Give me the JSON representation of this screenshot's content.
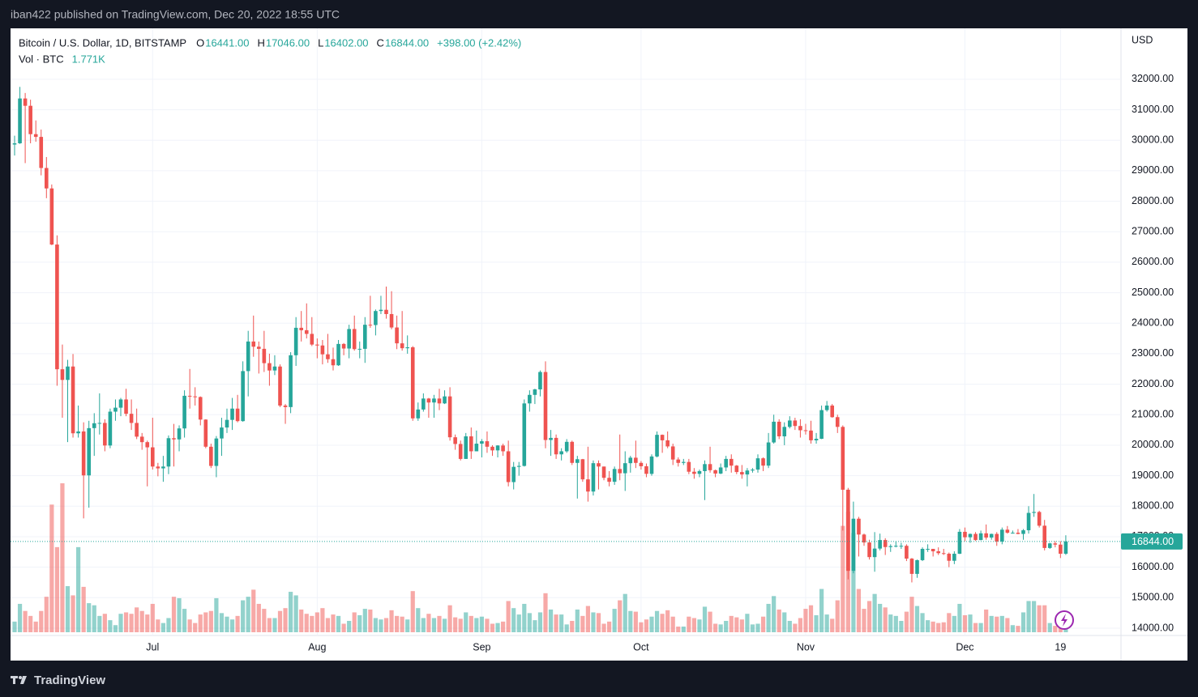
{
  "header": {
    "text": "iban422 published on TradingView.com, Dec 20, 2022 18:55 UTC"
  },
  "chart_data": {
    "type": "candlestick",
    "title": "Bitcoin / U.S. Dollar, 1D, BITSTAMP",
    "ohlc_legend": [
      {
        "key": "O",
        "text": "16441.00"
      },
      {
        "key": "H",
        "text": "17046.00"
      },
      {
        "key": "L",
        "text": "16402.00"
      },
      {
        "key": "C",
        "text": "16844.00"
      }
    ],
    "change": "+398.00 (+2.42%)",
    "volume_title": "Vol · BTC",
    "volume_text": "1.771K",
    "currency": "USD",
    "up_color": "#26a69a",
    "down_color": "#ef5350",
    "grid": true,
    "x": [
      "2022-06-05",
      "2022-06-06",
      "2022-06-07",
      "2022-06-08",
      "2022-06-09",
      "2022-06-10",
      "2022-06-11",
      "2022-06-12",
      "2022-06-13",
      "2022-06-14",
      "2022-06-15",
      "2022-06-16",
      "2022-06-17",
      "2022-06-18",
      "2022-06-19",
      "2022-06-20",
      "2022-06-21",
      "2022-06-22",
      "2022-06-23",
      "2022-06-24",
      "2022-06-25",
      "2022-06-26",
      "2022-06-27",
      "2022-06-28",
      "2022-06-29",
      "2022-06-30",
      "2022-07-01",
      "2022-07-02",
      "2022-07-03",
      "2022-07-04",
      "2022-07-05",
      "2022-07-06",
      "2022-07-07",
      "2022-07-08",
      "2022-07-09",
      "2022-07-10",
      "2022-07-11",
      "2022-07-12",
      "2022-07-13",
      "2022-07-14",
      "2022-07-15",
      "2022-07-16",
      "2022-07-17",
      "2022-07-18",
      "2022-07-19",
      "2022-07-20",
      "2022-07-21",
      "2022-07-22",
      "2022-07-23",
      "2022-07-24",
      "2022-07-25",
      "2022-07-26",
      "2022-07-27",
      "2022-07-28",
      "2022-07-29",
      "2022-07-30",
      "2022-07-31",
      "2022-08-01",
      "2022-08-02",
      "2022-08-03",
      "2022-08-04",
      "2022-08-05",
      "2022-08-06",
      "2022-08-07",
      "2022-08-08",
      "2022-08-09",
      "2022-08-10",
      "2022-08-11",
      "2022-08-12",
      "2022-08-13",
      "2022-08-14",
      "2022-08-15",
      "2022-08-16",
      "2022-08-17",
      "2022-08-18",
      "2022-08-19",
      "2022-08-20",
      "2022-08-21",
      "2022-08-22",
      "2022-08-23",
      "2022-08-24",
      "2022-08-25",
      "2022-08-26",
      "2022-08-27",
      "2022-08-28",
      "2022-08-29",
      "2022-08-30",
      "2022-08-31",
      "2022-09-01",
      "2022-09-02",
      "2022-09-03",
      "2022-09-04",
      "2022-09-05",
      "2022-09-06",
      "2022-09-07",
      "2022-09-08",
      "2022-09-09",
      "2022-09-10",
      "2022-09-11",
      "2022-09-12",
      "2022-09-13",
      "2022-09-14",
      "2022-09-15",
      "2022-09-16",
      "2022-09-17",
      "2022-09-18",
      "2022-09-19",
      "2022-09-20",
      "2022-09-21",
      "2022-09-22",
      "2022-09-23",
      "2022-09-24",
      "2022-09-25",
      "2022-09-26",
      "2022-09-27",
      "2022-09-28",
      "2022-09-29",
      "2022-09-30",
      "2022-10-01",
      "2022-10-02",
      "2022-10-03",
      "2022-10-04",
      "2022-10-05",
      "2022-10-06",
      "2022-10-07",
      "2022-10-08",
      "2022-10-09",
      "2022-10-10",
      "2022-10-11",
      "2022-10-12",
      "2022-10-13",
      "2022-10-14",
      "2022-10-15",
      "2022-10-16",
      "2022-10-17",
      "2022-10-18",
      "2022-10-19",
      "2022-10-20",
      "2022-10-21",
      "2022-10-22",
      "2022-10-23",
      "2022-10-24",
      "2022-10-25",
      "2022-10-26",
      "2022-10-27",
      "2022-10-28",
      "2022-10-29",
      "2022-10-30",
      "2022-10-31",
      "2022-11-01",
      "2022-11-02",
      "2022-11-03",
      "2022-11-04",
      "2022-11-05",
      "2022-11-06",
      "2022-11-07",
      "2022-11-08",
      "2022-11-09",
      "2022-11-10",
      "2022-11-11",
      "2022-11-12",
      "2022-11-13",
      "2022-11-14",
      "2022-11-15",
      "2022-11-16",
      "2022-11-17",
      "2022-11-18",
      "2022-11-19",
      "2022-11-20",
      "2022-11-21",
      "2022-11-22",
      "2022-11-23",
      "2022-11-24",
      "2022-11-25",
      "2022-11-26",
      "2022-11-27",
      "2022-11-28",
      "2022-11-29",
      "2022-11-30",
      "2022-12-01",
      "2022-12-02",
      "2022-12-03",
      "2022-12-04",
      "2022-12-05",
      "2022-12-06",
      "2022-12-07",
      "2022-12-08",
      "2022-12-09",
      "2022-12-10",
      "2022-12-11",
      "2022-12-12",
      "2022-12-13",
      "2022-12-14",
      "2022-12-15",
      "2022-12-16",
      "2022-12-17",
      "2022-12-18",
      "2022-12-19",
      "2022-12-20"
    ],
    "open": [
      29860,
      29900,
      31370,
      31130,
      30200,
      30110,
      29090,
      28420,
      26580,
      22490,
      22140,
      22580,
      20390,
      20450,
      19010,
      20560,
      20720,
      20730,
      19990,
      21100,
      21230,
      21500,
      21030,
      20730,
      20280,
      20100,
      19930,
      19300,
      19240,
      19300,
      20230,
      20190,
      20550,
      21620,
      21600,
      21580,
      20840,
      19950,
      19320,
      20220,
      20580,
      20830,
      21200,
      20790,
      22430,
      23400,
      23230,
      23160,
      22690,
      22450,
      22580,
      21300,
      21250,
      22950,
      23850,
      23770,
      23650,
      23300,
      23270,
      22980,
      22820,
      22620,
      23320,
      23170,
      23810,
      23150,
      23160,
      23950,
      23940,
      24400,
      24440,
      24300,
      23860,
      23340,
      23180,
      23210,
      20880,
      21170,
      21530,
      21400,
      21530,
      21370,
      21600,
      20260,
      20040,
      19550,
      20290,
      19800,
      20050,
      20130,
      19950,
      19830,
      19990,
      19800,
      18790,
      19290,
      19320,
      21370,
      21650,
      21830,
      22400,
      20170,
      20240,
      19700,
      19800,
      20110,
      19420,
      19540,
      18880,
      18480,
      19410,
      19300,
      18930,
      18800,
      19220,
      19080,
      19410,
      19590,
      19420,
      19310,
      19060,
      19630,
      20340,
      20160,
      19960,
      19530,
      19420,
      19450,
      19130,
      19060,
      19150,
      19380,
      19180,
      19070,
      19270,
      19550,
      19330,
      19120,
      19040,
      19170,
      19200,
      19570,
      19330,
      20090,
      20770,
      20290,
      20600,
      20810,
      20630,
      20490,
      20480,
      20160,
      20210,
      21150,
      21300,
      20920,
      20600,
      18540,
      15880,
      17590,
      17070,
      16810,
      16330,
      16610,
      16890,
      16660,
      16690,
      16700,
      16700,
      16280,
      15780,
      16230,
      16600,
      16600,
      16520,
      16460,
      16440,
      16210,
      16440,
      17160,
      16980,
      17090,
      16890,
      17110,
      16970,
      17090,
      16840,
      17230,
      17130,
      17130,
      17090,
      17210,
      17780,
      17810,
      17360,
      16630,
      16780,
      16740,
      16441
    ],
    "high": [
      30150,
      31750,
      31550,
      31330,
      30650,
      30350,
      29450,
      28550,
      26880,
      23300,
      22800,
      22990,
      21300,
      20750,
      20800,
      21050,
      21700,
      20850,
      21200,
      21500,
      21550,
      21850,
      21500,
      21200,
      20400,
      20150,
      20900,
      19420,
      19650,
      20320,
      20700,
      20650,
      21800,
      22500,
      21900,
      21600,
      20850,
      20050,
      20300,
      20900,
      21200,
      21550,
      21650,
      22750,
      23750,
      24250,
      23400,
      23750,
      23000,
      22950,
      22650,
      21350,
      23050,
      24200,
      24400,
      24650,
      24200,
      23500,
      23450,
      23650,
      23200,
      23450,
      23350,
      23950,
      24250,
      23400,
      24200,
      24900,
      24450,
      24900,
      25200,
      25050,
      24250,
      24400,
      23600,
      23250,
      21400,
      21700,
      21550,
      21650,
      21850,
      21800,
      21900,
      20350,
      20150,
      20400,
      20580,
      20480,
      20200,
      20450,
      20000,
      20000,
      20050,
      20150,
      19450,
      19450,
      21500,
      21800,
      21850,
      22450,
      22750,
      20500,
      20350,
      19900,
      20200,
      20150,
      19650,
      19550,
      19950,
      19500,
      19500,
      19300,
      19150,
      19300,
      20350,
      19800,
      19650,
      20150,
      19480,
      19400,
      19700,
      20450,
      20350,
      20450,
      20050,
      19600,
      19550,
      19550,
      19250,
      19200,
      19500,
      19950,
      19200,
      19400,
      19650,
      19700,
      19350,
      19350,
      19250,
      19250,
      19700,
      19600,
      20400,
      21000,
      20850,
      20750,
      20950,
      20900,
      20850,
      20700,
      20800,
      20400,
      21300,
      21450,
      21350,
      21000,
      20650,
      18600,
      18150,
      17650,
      17100,
      16900,
      17150,
      17100,
      16950,
      16750,
      16850,
      16800,
      16750,
      16300,
      16250,
      16650,
      16750,
      16600,
      16650,
      16600,
      16480,
      16520,
      17250,
      17300,
      17100,
      17150,
      17200,
      17400,
      17100,
      17150,
      17300,
      17350,
      17200,
      17250,
      17250,
      18000,
      18400,
      17850,
      17550,
      16800,
      16850,
      16850,
      17046
    ],
    "low": [
      29500,
      29880,
      29250,
      29900,
      29950,
      28850,
      28100,
      26560,
      21950,
      20900,
      20100,
      20250,
      20250,
      17600,
      17950,
      19650,
      20350,
      19800,
      19900,
      20800,
      20950,
      20950,
      20500,
      20200,
      19850,
      18650,
      19200,
      18980,
      18800,
      19050,
      19300,
      19800,
      20250,
      21200,
      21300,
      20650,
      19900,
      19250,
      18950,
      19650,
      20400,
      20500,
      20750,
      20770,
      21600,
      22900,
      22350,
      22400,
      21950,
      22300,
      21250,
      20700,
      21050,
      22600,
      23400,
      23500,
      23250,
      22850,
      22650,
      22700,
      22450,
      22600,
      22950,
      22850,
      23100,
      22850,
      22700,
      23850,
      23600,
      24300,
      24150,
      23800,
      23150,
      23100,
      23000,
      20800,
      20800,
      21100,
      20900,
      20900,
      21150,
      21350,
      20150,
      19850,
      19500,
      19550,
      19550,
      19800,
      19600,
      19750,
      19650,
      19600,
      19650,
      18650,
      18550,
      19000,
      19300,
      21100,
      21350,
      21600,
      19900,
      19650,
      19550,
      19500,
      19750,
      19350,
      18250,
      18800,
      18150,
      18350,
      18550,
      18850,
      18650,
      18700,
      18850,
      18500,
      19100,
      19250,
      19200,
      18950,
      19000,
      19600,
      19750,
      19900,
      19350,
      19300,
      19350,
      19050,
      18900,
      18950,
      18200,
      19100,
      18950,
      19050,
      19150,
      19100,
      19050,
      18900,
      18650,
      19100,
      19100,
      19150,
      19250,
      20050,
      20200,
      20000,
      20550,
      20500,
      20250,
      20350,
      20050,
      20050,
      20200,
      21100,
      20900,
      20400,
      17200,
      15600,
      15800,
      16350,
      16700,
      16250,
      15850,
      16550,
      16400,
      16500,
      16650,
      16600,
      16200,
      15500,
      15650,
      16200,
      16500,
      16350,
      16400,
      16400,
      16000,
      16100,
      16430,
      16850,
      16800,
      16860,
      16880,
      16900,
      16900,
      16700,
      16750,
      17100,
      17100,
      17080,
      16900,
      17100,
      17650,
      17300,
      16550,
      16600,
      16650,
      16300,
      16402
    ],
    "close": [
      29900,
      31370,
      31130,
      30200,
      30110,
      29090,
      28420,
      26580,
      22490,
      22140,
      22580,
      20390,
      20450,
      19010,
      20560,
      20720,
      20730,
      19990,
      21100,
      21230,
      21500,
      21030,
      20730,
      20280,
      20100,
      19930,
      19300,
      19240,
      19300,
      20230,
      20190,
      20550,
      21620,
      21600,
      21580,
      20840,
      19950,
      19320,
      20220,
      20580,
      20830,
      21200,
      20790,
      22430,
      23400,
      23230,
      23160,
      22690,
      22450,
      22580,
      21300,
      21250,
      22950,
      23850,
      23770,
      23650,
      23300,
      23270,
      22980,
      22820,
      22620,
      23320,
      23170,
      23810,
      23150,
      23160,
      23950,
      23940,
      24400,
      24440,
      24300,
      23860,
      23340,
      23180,
      23210,
      20880,
      21170,
      21530,
      21400,
      21530,
      21370,
      21600,
      20260,
      20040,
      19550,
      20290,
      19800,
      20050,
      20130,
      19950,
      19830,
      19990,
      19800,
      18790,
      19290,
      19320,
      21370,
      21650,
      21830,
      22400,
      20170,
      20240,
      19700,
      19800,
      20110,
      19420,
      19540,
      18880,
      18480,
      19410,
      19300,
      18930,
      18800,
      19220,
      19080,
      19410,
      19590,
      19420,
      19310,
      19060,
      19630,
      20340,
      20160,
      19960,
      19530,
      19420,
      19450,
      19130,
      19060,
      19150,
      19380,
      19180,
      19070,
      19270,
      19550,
      19330,
      19120,
      19040,
      19170,
      19200,
      19570,
      19330,
      20090,
      20770,
      20290,
      20600,
      20810,
      20630,
      20490,
      20480,
      20160,
      20210,
      21150,
      21300,
      20920,
      20600,
      18540,
      15880,
      17590,
      17070,
      16810,
      16330,
      16610,
      16890,
      16660,
      16690,
      16700,
      16700,
      16280,
      15780,
      16230,
      16600,
      16600,
      16520,
      16460,
      16440,
      16210,
      16440,
      17160,
      16980,
      17090,
      16890,
      17110,
      16970,
      17090,
      16840,
      17230,
      17130,
      17130,
      17090,
      17210,
      17780,
      17810,
      17360,
      16630,
      16780,
      16740,
      16440,
      16844
    ],
    "volume": [
      1500,
      4000,
      3000,
      2300,
      1500,
      3000,
      5000,
      18000,
      12000,
      21000,
      6500,
      5200,
      12000,
      6400,
      4100,
      3800,
      2300,
      2600,
      1700,
      1000,
      2600,
      2800,
      2600,
      3500,
      3000,
      2500,
      4000,
      1800,
      1300,
      2000,
      5000,
      4800,
      3300,
      1800,
      1300,
      2500,
      2800,
      3000,
      4800,
      2700,
      2200,
      1800,
      2300,
      4500,
      5000,
      6000,
      4000,
      3300,
      2000,
      2000,
      3000,
      3400,
      5700,
      5200,
      3200,
      2600,
      2300,
      2800,
      3400,
      2000,
      2500,
      2300,
      1200,
      1600,
      2800,
      2400,
      3300,
      3200,
      2000,
      1800,
      2000,
      3100,
      2300,
      2200,
      1800,
      5800,
      3400,
      2000,
      2600,
      2000,
      2300,
      1900,
      3800,
      2100,
      1900,
      2800,
      2300,
      2000,
      2200,
      1900,
      1200,
      1300,
      1500,
      4400,
      3400,
      2500,
      4000,
      2700,
      1700,
      2800,
      5500,
      3200,
      2500,
      2500,
      1100,
      1600,
      3200,
      2300,
      3700,
      2800,
      2700,
      1200,
      1500,
      3300,
      4500,
      5400,
      3000,
      2900,
      1400,
      1800,
      2200,
      3000,
      2600,
      3100,
      2200,
      800,
      800,
      2200,
      2000,
      1800,
      3600,
      2900,
      1200,
      1100,
      1600,
      2300,
      2100,
      1800,
      2600,
      1100,
      1200,
      2200,
      4000,
      5100,
      3200,
      2800,
      1600,
      1200,
      2000,
      3300,
      3800,
      2400,
      6100,
      2500,
      1900,
      4500,
      15000,
      17000,
      14000,
      6100,
      3300,
      4400,
      5400,
      4000,
      3500,
      2500,
      2300,
      1600,
      2900,
      5000,
      3700,
      2700,
      1700,
      1500,
      1300,
      1400,
      2700,
      2300,
      4000,
      2400,
      2500,
      1300,
      1300,
      3200,
      2300,
      2200,
      2300,
      2000,
      1000,
      900,
      2800,
      4400,
      4400,
      3800,
      3800,
      1300,
      900,
      1600,
      1771
    ],
    "ylim": [
      13760,
      33670
    ],
    "yticks": [
      {
        "value": 14000,
        "label": "14000.00"
      },
      {
        "value": 15000,
        "label": "15000.00"
      },
      {
        "value": 16000,
        "label": "16000.00"
      },
      {
        "value": 17000,
        "label": "17000.00"
      },
      {
        "value": 18000,
        "label": "18000.00"
      },
      {
        "value": 19000,
        "label": "19000.00"
      },
      {
        "value": 20000,
        "label": "20000.00"
      },
      {
        "value": 21000,
        "label": "21000.00"
      },
      {
        "value": 22000,
        "label": "22000.00"
      },
      {
        "value": 23000,
        "label": "23000.00"
      },
      {
        "value": 24000,
        "label": "24000.00"
      },
      {
        "value": 25000,
        "label": "25000.00"
      },
      {
        "value": 26000,
        "label": "26000.00"
      },
      {
        "value": 27000,
        "label": "27000.00"
      },
      {
        "value": 28000,
        "label": "28000.00"
      },
      {
        "value": 29000,
        "label": "29000.00"
      },
      {
        "value": 30000,
        "label": "30000.00"
      },
      {
        "value": 31000,
        "label": "31000.00"
      },
      {
        "value": 32000,
        "label": "32000.00"
      }
    ],
    "xticks": [
      {
        "value": "2022-07-01",
        "label": "Jul"
      },
      {
        "value": "2022-08-01",
        "label": "Aug"
      },
      {
        "value": "2022-09-01",
        "label": "Sep"
      },
      {
        "value": "2022-10-01",
        "label": "Oct"
      },
      {
        "value": "2022-11-01",
        "label": "Nov"
      },
      {
        "value": "2022-12-01",
        "label": "Dec"
      },
      {
        "value": "2022-12-19",
        "label": "19"
      }
    ],
    "last_price": {
      "value": 16844,
      "label": "16844.00"
    }
  },
  "footer": {
    "logo": "TradingView"
  }
}
